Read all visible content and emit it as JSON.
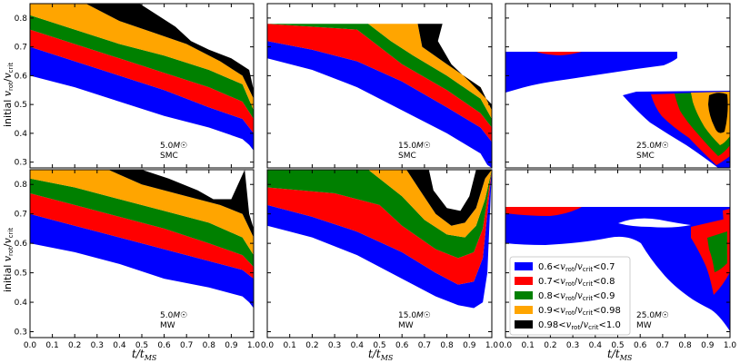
{
  "chart_data": {
    "type": "area",
    "layout": "2x3 grid, shared x axis per column, shared y axis per row",
    "xlabel": "t/t_MS",
    "ylabel": "initial v_rot/v_crit",
    "xlim": [
      0.0,
      1.0
    ],
    "ylim_top_row": [
      0.28,
      0.85
    ],
    "ylim_bottom_row": [
      0.28,
      0.85
    ],
    "x_ticks": [
      "0.0",
      "0.1",
      "0.2",
      "0.3",
      "0.4",
      "0.5",
      "0.6",
      "0.7",
      "0.8",
      "0.9",
      "1.0"
    ],
    "y_ticks": [
      "0.3",
      "0.4",
      "0.5",
      "0.6",
      "0.7",
      "0.8"
    ],
    "legend_placement": "lower-left of bottom-right panel",
    "series": [
      {
        "name": "0.6<v_rot/v_crit<0.7",
        "color": "#0000ff"
      },
      {
        "name": "0.7<v_rot/v_crit<0.8",
        "color": "#ff0000"
      },
      {
        "name": "0.8<v_rot/v_crit<0.9",
        "color": "#008000"
      },
      {
        "name": "0.9<v_rot/v_crit<0.98",
        "color": "#ffa500"
      },
      {
        "name": "0.98<v_rot/v_crit<1.0",
        "color": "#000000"
      }
    ],
    "panels": [
      {
        "id": "p1",
        "row": 0,
        "col": 0,
        "mass": "5.0",
        "galaxy": "SMC",
        "lower": [
          [
            0.0,
            0.6
          ],
          [
            0.2,
            0.56
          ],
          [
            0.4,
            0.51
          ],
          [
            0.6,
            0.46
          ],
          [
            0.8,
            0.42
          ],
          [
            0.95,
            0.38
          ],
          [
            0.98,
            0.36
          ],
          [
            1.0,
            0.34
          ]
        ],
        "b1": [
          [
            0.0,
            0.7
          ],
          [
            0.2,
            0.65
          ],
          [
            0.4,
            0.6
          ],
          [
            0.6,
            0.55
          ],
          [
            0.8,
            0.49
          ],
          [
            0.95,
            0.45
          ],
          [
            1.0,
            0.4
          ]
        ],
        "b2": [
          [
            0.0,
            0.76
          ],
          [
            0.2,
            0.71
          ],
          [
            0.4,
            0.66
          ],
          [
            0.6,
            0.61
          ],
          [
            0.8,
            0.56
          ],
          [
            0.95,
            0.51
          ],
          [
            1.0,
            0.45
          ]
        ],
        "b3": [
          [
            0.0,
            0.81
          ],
          [
            0.2,
            0.76
          ],
          [
            0.4,
            0.71
          ],
          [
            0.6,
            0.67
          ],
          [
            0.8,
            0.62
          ],
          [
            0.95,
            0.57
          ],
          [
            1.0,
            0.48
          ]
        ],
        "b4": [
          [
            0.0,
            0.85
          ],
          [
            0.25,
            0.85
          ],
          [
            0.4,
            0.79
          ],
          [
            0.55,
            0.75
          ],
          [
            0.7,
            0.71
          ],
          [
            0.85,
            0.65
          ],
          [
            0.95,
            0.6
          ],
          [
            1.0,
            0.52
          ]
        ],
        "upper": [
          [
            0.0,
            0.85
          ],
          [
            0.49,
            0.85
          ],
          [
            0.55,
            0.82
          ],
          [
            0.65,
            0.77
          ],
          [
            0.72,
            0.72
          ],
          [
            0.8,
            0.69
          ],
          [
            0.9,
            0.66
          ],
          [
            0.98,
            0.62
          ],
          [
            1.0,
            0.55
          ]
        ]
      },
      {
        "id": "p2",
        "row": 0,
        "col": 1,
        "mass": "15.0",
        "galaxy": "SMC",
        "lower": [
          [
            0.0,
            0.66
          ],
          [
            0.2,
            0.62
          ],
          [
            0.4,
            0.56
          ],
          [
            0.6,
            0.48
          ],
          [
            0.8,
            0.4
          ],
          [
            0.95,
            0.33
          ],
          [
            0.98,
            0.29
          ],
          [
            1.0,
            0.28
          ]
        ],
        "b1": [
          [
            0.0,
            0.72
          ],
          [
            0.2,
            0.69
          ],
          [
            0.4,
            0.65
          ],
          [
            0.6,
            0.58
          ],
          [
            0.8,
            0.49
          ],
          [
            0.95,
            0.42
          ],
          [
            1.0,
            0.37
          ]
        ],
        "b2": [
          [
            0.0,
            0.78
          ],
          [
            0.4,
            0.76
          ],
          [
            0.5,
            0.7
          ],
          [
            0.6,
            0.64
          ],
          [
            0.8,
            0.55
          ],
          [
            0.95,
            0.47
          ],
          [
            1.0,
            0.42
          ]
        ],
        "b3": [
          [
            0.0,
            0.78
          ],
          [
            0.45,
            0.78
          ],
          [
            0.55,
            0.72
          ],
          [
            0.65,
            0.67
          ],
          [
            0.8,
            0.6
          ],
          [
            0.95,
            0.52
          ],
          [
            1.0,
            0.45
          ]
        ],
        "b4": [
          [
            0.0,
            0.78
          ],
          [
            0.67,
            0.78
          ],
          [
            0.69,
            0.7
          ],
          [
            0.8,
            0.64
          ],
          [
            0.95,
            0.56
          ],
          [
            1.0,
            0.48
          ]
        ],
        "upper": [
          [
            0.0,
            0.78
          ],
          [
            0.78,
            0.78
          ],
          [
            0.76,
            0.72
          ],
          [
            0.82,
            0.64
          ],
          [
            0.9,
            0.58
          ],
          [
            0.95,
            0.54
          ],
          [
            1.0,
            0.5
          ]
        ]
      },
      {
        "id": "p3",
        "row": 0,
        "col": 2,
        "mass": "25.0",
        "galaxy": "SMC"
      },
      {
        "id": "p4",
        "row": 1,
        "col": 0,
        "mass": "5.0",
        "galaxy": "MW",
        "lower": [
          [
            0.0,
            0.6
          ],
          [
            0.2,
            0.57
          ],
          [
            0.4,
            0.53
          ],
          [
            0.6,
            0.48
          ],
          [
            0.8,
            0.45
          ],
          [
            0.95,
            0.42
          ],
          [
            0.98,
            0.4
          ],
          [
            1.0,
            0.38
          ]
        ],
        "b1": [
          [
            0.0,
            0.7
          ],
          [
            0.2,
            0.66
          ],
          [
            0.4,
            0.62
          ],
          [
            0.6,
            0.58
          ],
          [
            0.8,
            0.54
          ],
          [
            0.95,
            0.51
          ],
          [
            1.0,
            0.48
          ]
        ],
        "b2": [
          [
            0.0,
            0.77
          ],
          [
            0.2,
            0.73
          ],
          [
            0.4,
            0.69
          ],
          [
            0.6,
            0.65
          ],
          [
            0.8,
            0.6
          ],
          [
            0.95,
            0.56
          ],
          [
            1.0,
            0.52
          ]
        ],
        "b3": [
          [
            0.0,
            0.82
          ],
          [
            0.2,
            0.79
          ],
          [
            0.4,
            0.75
          ],
          [
            0.6,
            0.71
          ],
          [
            0.8,
            0.67
          ],
          [
            0.95,
            0.62
          ],
          [
            1.0,
            0.56
          ]
        ],
        "b4": [
          [
            0.0,
            0.85
          ],
          [
            0.35,
            0.85
          ],
          [
            0.5,
            0.8
          ],
          [
            0.7,
            0.76
          ],
          [
            0.85,
            0.73
          ],
          [
            0.95,
            0.7
          ],
          [
            1.0,
            0.62
          ]
        ],
        "upper": [
          [
            0.0,
            0.85
          ],
          [
            0.5,
            0.85
          ],
          [
            0.62,
            0.82
          ],
          [
            0.75,
            0.78
          ],
          [
            0.82,
            0.75
          ],
          [
            0.9,
            0.75
          ],
          [
            0.96,
            0.85
          ],
          [
            0.98,
            0.7
          ],
          [
            1.0,
            0.65
          ]
        ]
      },
      {
        "id": "p5",
        "row": 1,
        "col": 1,
        "mass": "15.0",
        "galaxy": "MW",
        "lower": [
          [
            0.0,
            0.66
          ],
          [
            0.2,
            0.62
          ],
          [
            0.4,
            0.56
          ],
          [
            0.6,
            0.48
          ],
          [
            0.75,
            0.42
          ],
          [
            0.85,
            0.39
          ],
          [
            0.92,
            0.38
          ],
          [
            0.96,
            0.4
          ],
          [
            0.98,
            0.5
          ],
          [
            1.0,
            0.85
          ]
        ],
        "b1": [
          [
            0.0,
            0.73
          ],
          [
            0.2,
            0.69
          ],
          [
            0.4,
            0.64
          ],
          [
            0.6,
            0.57
          ],
          [
            0.75,
            0.5
          ],
          [
            0.85,
            0.46
          ],
          [
            0.92,
            0.47
          ],
          [
            0.96,
            0.55
          ],
          [
            1.0,
            0.85
          ]
        ],
        "b2": [
          [
            0.0,
            0.79
          ],
          [
            0.3,
            0.77
          ],
          [
            0.5,
            0.73
          ],
          [
            0.6,
            0.66
          ],
          [
            0.75,
            0.58
          ],
          [
            0.85,
            0.55
          ],
          [
            0.92,
            0.57
          ],
          [
            0.96,
            0.65
          ],
          [
            1.0,
            0.85
          ]
        ],
        "b3": [
          [
            0.0,
            0.85
          ],
          [
            0.45,
            0.85
          ],
          [
            0.6,
            0.76
          ],
          [
            0.7,
            0.68
          ],
          [
            0.8,
            0.63
          ],
          [
            0.88,
            0.62
          ],
          [
            0.93,
            0.66
          ],
          [
            0.97,
            0.75
          ],
          [
            1.0,
            0.85
          ]
        ],
        "b4": [
          [
            0.0,
            0.85
          ],
          [
            0.62,
            0.85
          ],
          [
            0.68,
            0.78
          ],
          [
            0.75,
            0.7
          ],
          [
            0.82,
            0.66
          ],
          [
            0.88,
            0.67
          ],
          [
            0.93,
            0.72
          ],
          [
            0.97,
            0.82
          ],
          [
            1.0,
            0.85
          ]
        ],
        "upper": [
          [
            0.0,
            0.85
          ],
          [
            0.72,
            0.85
          ],
          [
            0.74,
            0.78
          ],
          [
            0.8,
            0.72
          ],
          [
            0.86,
            0.71
          ],
          [
            0.9,
            0.76
          ],
          [
            0.93,
            0.85
          ],
          [
            1.0,
            0.85
          ]
        ]
      },
      {
        "id": "p6",
        "row": 1,
        "col": 2,
        "mass": "25.0",
        "galaxy": "MW"
      }
    ]
  },
  "labels": {
    "p1_mass": "5.0",
    "p1_gal": "SMC",
    "p2_mass": "15.0",
    "p2_gal": "SMC",
    "p3_mass": "25.0",
    "p3_gal": "SMC",
    "p4_mass": "5.0",
    "p4_gal": "MW",
    "p5_mass": "15.0",
    "p5_gal": "MW",
    "p6_mass": "25.0",
    "p6_gal": "MW",
    "msun": "M☉",
    "xlabel": "t/t",
    "xlabel_sub": "MS",
    "ylabel_prefix": "initial ",
    "ylabel_v": "v",
    "ylabel_rot": "rot",
    "ylabel_crit": "crit",
    "legend": [
      {
        "lo": "0.6<",
        "hi": "<0.7"
      },
      {
        "lo": "0.7<",
        "hi": "<0.8"
      },
      {
        "lo": "0.8<",
        "hi": "<0.9"
      },
      {
        "lo": "0.9<",
        "hi": "<0.98"
      },
      {
        "lo": "0.98<",
        "hi": "<1.0"
      }
    ],
    "legend_v": "v",
    "legend_rot": "rot",
    "legend_crit": "crit"
  }
}
